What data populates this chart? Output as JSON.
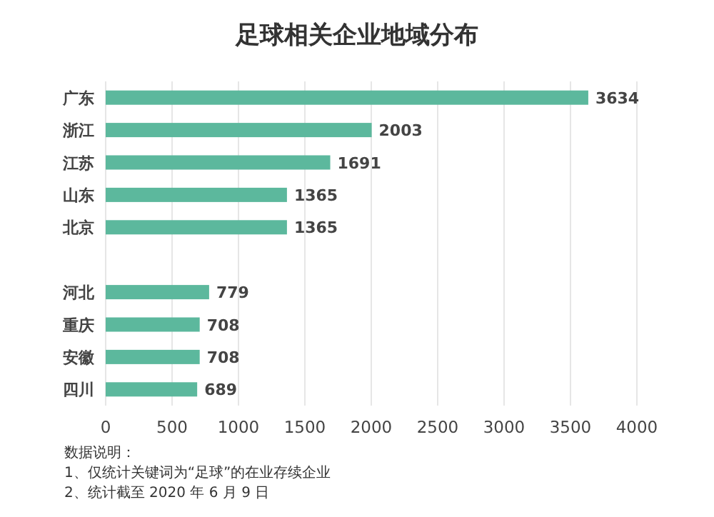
{
  "chart_data": {
    "type": "bar",
    "orientation": "horizontal",
    "title": "足球相关企业地域分布",
    "categories": [
      "广东",
      "浙江",
      "江苏",
      "山东",
      "北京",
      null,
      "河北",
      "重庆",
      "安徽",
      "四川"
    ],
    "values": [
      3634,
      2003,
      1691,
      1365,
      1365,
      null,
      779,
      708,
      708,
      689
    ],
    "color": "#5cb89d",
    "data_labels": true,
    "grid": "x",
    "xlim": [
      0,
      4000
    ],
    "xticks": [
      0,
      500,
      1000,
      1500,
      2000,
      2500,
      3000,
      3500,
      4000
    ],
    "annotations": [
      "数据说明：",
      "1、仅统计关键词为“足球”的在业存续企业",
      "2、统计截至 2020 年 6 月 9 日"
    ]
  }
}
